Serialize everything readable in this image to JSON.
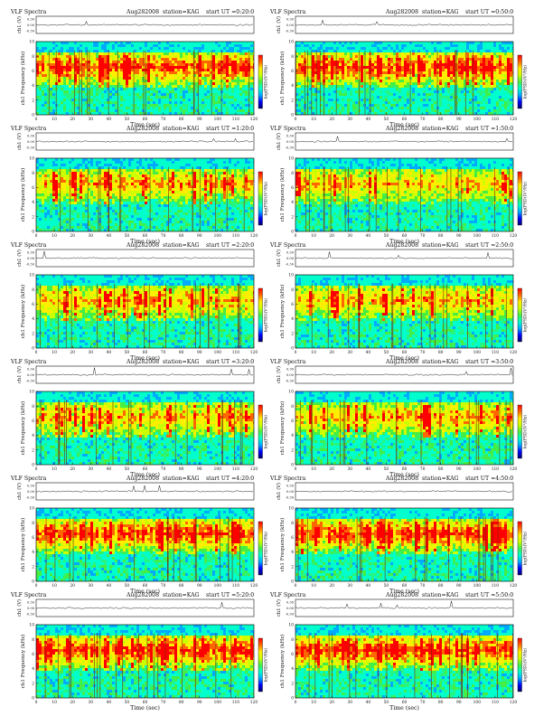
{
  "page": {
    "colors": {
      "background": "#ffffff",
      "axis": "#111111",
      "trace": "#222222"
    }
  },
  "chart_data": [
    {
      "type": "heatmap",
      "title": "VLF Spectra",
      "date": "Aug282008",
      "station": "station=KAG",
      "start_label": "start UT =0:20:0",
      "trace_ylabel": "ch1 (V)",
      "trace_ticks": [
        "0.30",
        "0.00",
        "-0.30"
      ],
      "spectrogram_ylabel": "ch1 Frequency (kHz)",
      "ylim": [
        0,
        10
      ],
      "y_ticks": [
        "0",
        "2",
        "4",
        "6",
        "8",
        "10"
      ],
      "xlabel": "Time (sec)",
      "xlim": [
        0,
        120
      ],
      "x_ticks": [
        "0",
        "10",
        "20",
        "30",
        "40",
        "50",
        "60",
        "70",
        "80",
        "90",
        "100",
        "110",
        "120"
      ],
      "colorbar_label": "log(PSD)(V²/Hz)",
      "colormap": [
        "#00006a",
        "#0000ff",
        "#00aaff",
        "#00ffcc",
        "#44ee44",
        "#ccff00",
        "#ffee00",
        "#ff6600",
        "#ff0000"
      ],
      "activity": "intense"
    },
    {
      "type": "heatmap",
      "title": "VLF Spectra",
      "date": "Aug282008",
      "station": "station=KAG",
      "start_label": "start UT =0:50:0",
      "trace_ylabel": "ch1 (V)",
      "trace_ticks": [
        "0.30",
        "0.00",
        "-0.30"
      ],
      "spectrogram_ylabel": "ch1 Frequency (kHz)",
      "ylim": [
        0,
        10
      ],
      "y_ticks": [
        "0",
        "2",
        "4",
        "6",
        "8",
        "10"
      ],
      "xlabel": "Time (sec)",
      "xlim": [
        0,
        120
      ],
      "x_ticks": [
        "0",
        "10",
        "20",
        "30",
        "40",
        "50",
        "60",
        "70",
        "80",
        "90",
        "100",
        "110",
        "120"
      ],
      "colorbar_label": "log(PSD)(V²/Hz)",
      "colormap": [
        "#00006a",
        "#0000ff",
        "#00aaff",
        "#00ffcc",
        "#44ee44",
        "#ccff00",
        "#ffee00",
        "#ff6600",
        "#ff0000"
      ],
      "activity": "intense"
    },
    {
      "type": "heatmap",
      "title": "VLF Spectra",
      "date": "Aug282008",
      "station": "station=KAG",
      "start_label": "start UT =1:20:0",
      "trace_ylabel": "ch1 (V)",
      "trace_ticks": [
        "0.30",
        "0.00",
        "-0.30"
      ],
      "spectrogram_ylabel": "ch1 Frequency (kHz)",
      "ylim": [
        0,
        10
      ],
      "y_ticks": [
        "0",
        "2",
        "4",
        "6",
        "8",
        "10"
      ],
      "xlabel": "Time (sec)",
      "xlim": [
        0,
        120
      ],
      "x_ticks": [
        "0",
        "10",
        "20",
        "30",
        "40",
        "50",
        "60",
        "70",
        "80",
        "90",
        "100",
        "110",
        "120"
      ],
      "colorbar_label": "log(PSD)(V²/Hz)",
      "colormap": [
        "#00006a",
        "#0000ff",
        "#00aaff",
        "#00ffcc",
        "#44ee44",
        "#ccff00",
        "#ffee00",
        "#ff6600",
        "#ff0000"
      ],
      "activity": "moderate"
    },
    {
      "type": "heatmap",
      "title": "VLF Spectra",
      "date": "Aug282008",
      "station": "station=KAG",
      "start_label": "start UT =1:50:0",
      "trace_ylabel": "ch1 (V)",
      "trace_ticks": [
        "0.30",
        "0.00",
        "-0.30"
      ],
      "spectrogram_ylabel": "ch1 Frequency (kHz)",
      "ylim": [
        0,
        10
      ],
      "y_ticks": [
        "0",
        "2",
        "4",
        "6",
        "8",
        "10"
      ],
      "xlabel": "Time (sec)",
      "xlim": [
        0,
        120
      ],
      "x_ticks": [
        "0",
        "10",
        "20",
        "30",
        "40",
        "50",
        "60",
        "70",
        "80",
        "90",
        "100",
        "110",
        "120"
      ],
      "colorbar_label": "log(PSD)(V²/Hz)",
      "colormap": [
        "#00006a",
        "#0000ff",
        "#00aaff",
        "#00ffcc",
        "#44ee44",
        "#ccff00",
        "#ffee00",
        "#ff6600",
        "#ff0000"
      ],
      "activity": "moderate"
    },
    {
      "type": "heatmap",
      "title": "VLF Spectra",
      "date": "Aug282008",
      "station": "station=KAG",
      "start_label": "start UT =2:20:0",
      "trace_ylabel": "ch1 (V)",
      "trace_ticks": [
        "0.30",
        "0.00",
        "-0.30"
      ],
      "spectrogram_ylabel": "ch1 Frequency (kHz)",
      "ylim": [
        0,
        10
      ],
      "y_ticks": [
        "0",
        "2",
        "4",
        "6",
        "8",
        "10"
      ],
      "xlabel": "Time (sec)",
      "xlim": [
        0,
        120
      ],
      "x_ticks": [
        "0",
        "10",
        "20",
        "30",
        "40",
        "50",
        "60",
        "70",
        "80",
        "90",
        "100",
        "110",
        "120"
      ],
      "colorbar_label": "log(PSD)(V²/Hz)",
      "colormap": [
        "#00006a",
        "#0000ff",
        "#00aaff",
        "#00ffcc",
        "#44ee44",
        "#ccff00",
        "#ffee00",
        "#ff6600",
        "#ff0000"
      ],
      "activity": "moderate"
    },
    {
      "type": "heatmap",
      "title": "VLF Spectra",
      "date": "Aug282008",
      "station": "station=KAG",
      "start_label": "start UT =2:50:0",
      "trace_ylabel": "ch1 (V)",
      "trace_ticks": [
        "0.30",
        "0.00",
        "-0.30"
      ],
      "spectrogram_ylabel": "ch1 Frequency (kHz)",
      "ylim": [
        0,
        10
      ],
      "y_ticks": [
        "0",
        "2",
        "4",
        "6",
        "8",
        "10"
      ],
      "xlabel": "Time (sec)",
      "xlim": [
        0,
        120
      ],
      "x_ticks": [
        "0",
        "10",
        "20",
        "30",
        "40",
        "50",
        "60",
        "70",
        "80",
        "90",
        "100",
        "110",
        "120"
      ],
      "colorbar_label": "log(PSD)(V²/Hz)",
      "colormap": [
        "#00006a",
        "#0000ff",
        "#00aaff",
        "#00ffcc",
        "#44ee44",
        "#ccff00",
        "#ffee00",
        "#ff6600",
        "#ff0000"
      ],
      "activity": "moderate"
    },
    {
      "type": "heatmap",
      "title": "VLF Spectra",
      "date": "Aug282008",
      "station": "station=KAG",
      "start_label": "start UT =3:20:0",
      "trace_ylabel": "ch1 (V)",
      "trace_ticks": [
        "0.30",
        "0.00",
        "-0.30"
      ],
      "spectrogram_ylabel": "ch1 Frequency (kHz)",
      "ylim": [
        0,
        10
      ],
      "y_ticks": [
        "0",
        "2",
        "4",
        "6",
        "8",
        "10"
      ],
      "xlabel": "Time (sec)",
      "xlim": [
        0,
        120
      ],
      "x_ticks": [
        "0",
        "10",
        "20",
        "30",
        "40",
        "50",
        "60",
        "70",
        "80",
        "90",
        "100",
        "110",
        "120"
      ],
      "colorbar_label": "log(PSD)(V²/Hz)",
      "colormap": [
        "#00006a",
        "#0000ff",
        "#00aaff",
        "#00ffcc",
        "#44ee44",
        "#ccff00",
        "#ffee00",
        "#ff6600",
        "#ff0000"
      ],
      "activity": "moderate"
    },
    {
      "type": "heatmap",
      "title": "VLF Spectra",
      "date": "Aug282008",
      "station": "station=KAG",
      "start_label": "start UT =3:50:0",
      "trace_ylabel": "ch1 (V)",
      "trace_ticks": [
        "0.30",
        "0.00",
        "-0.30"
      ],
      "spectrogram_ylabel": "ch1 Frequency (kHz)",
      "ylim": [
        0,
        10
      ],
      "y_ticks": [
        "0",
        "2",
        "4",
        "6",
        "8",
        "10"
      ],
      "xlabel": "Time (sec)",
      "xlim": [
        0,
        120
      ],
      "x_ticks": [
        "0",
        "10",
        "20",
        "30",
        "40",
        "50",
        "60",
        "70",
        "80",
        "90",
        "100",
        "110",
        "120"
      ],
      "colorbar_label": "log(PSD)(V²/Hz)",
      "colormap": [
        "#00006a",
        "#0000ff",
        "#00aaff",
        "#00ffcc",
        "#44ee44",
        "#ccff00",
        "#ffee00",
        "#ff6600",
        "#ff0000"
      ],
      "activity": "moderate"
    },
    {
      "type": "heatmap",
      "title": "VLF Spectra",
      "date": "Aug282008",
      "station": "station=KAG",
      "start_label": "start UT =4:20:0",
      "trace_ylabel": "ch1 (V)",
      "trace_ticks": [
        "0.30",
        "0.00",
        "-0.30"
      ],
      "spectrogram_ylabel": "ch1 Frequency (kHz)",
      "ylim": [
        0,
        10
      ],
      "y_ticks": [
        "0",
        "2",
        "4",
        "6",
        "8",
        "10"
      ],
      "xlabel": "Time (sec)",
      "xlim": [
        0,
        120
      ],
      "x_ticks": [
        "0",
        "10",
        "20",
        "30",
        "40",
        "50",
        "60",
        "70",
        "80",
        "90",
        "100",
        "110",
        "120"
      ],
      "colorbar_label": "log(PSD)(V²/Hz)",
      "colormap": [
        "#00006a",
        "#0000ff",
        "#00aaff",
        "#00ffcc",
        "#44ee44",
        "#ccff00",
        "#ffee00",
        "#ff6600",
        "#ff0000"
      ],
      "activity": "intense"
    },
    {
      "type": "heatmap",
      "title": "VLF Spectra",
      "date": "Aug282008",
      "station": "station=KAG",
      "start_label": "start UT =4:50:0",
      "trace_ylabel": "ch1 (V)",
      "trace_ticks": [
        "0.30",
        "0.00",
        "-0.30"
      ],
      "spectrogram_ylabel": "ch1 Frequency (kHz)",
      "ylim": [
        0,
        10
      ],
      "y_ticks": [
        "0",
        "2",
        "4",
        "6",
        "8",
        "10"
      ],
      "xlabel": "Time (sec)",
      "xlim": [
        0,
        120
      ],
      "x_ticks": [
        "0",
        "10",
        "20",
        "30",
        "40",
        "50",
        "60",
        "70",
        "80",
        "90",
        "100",
        "110",
        "120"
      ],
      "colorbar_label": "log(PSD)(V²/Hz)",
      "colormap": [
        "#00006a",
        "#0000ff",
        "#00aaff",
        "#00ffcc",
        "#44ee44",
        "#ccff00",
        "#ffee00",
        "#ff6600",
        "#ff0000"
      ],
      "activity": "intense"
    },
    {
      "type": "heatmap",
      "title": "VLF Spectra",
      "date": "Aug282008",
      "station": "station=KAG",
      "start_label": "start UT =5:20:0",
      "trace_ylabel": "ch1 (V)",
      "trace_ticks": [
        "0.30",
        "0.00",
        "-0.30"
      ],
      "spectrogram_ylabel": "ch1 Frequency (kHz)",
      "ylim": [
        0,
        10
      ],
      "y_ticks": [
        "0",
        "2",
        "4",
        "6",
        "8",
        "10"
      ],
      "xlabel": "Time (sec)",
      "xlim": [
        0,
        120
      ],
      "x_ticks": [
        "0",
        "10",
        "20",
        "30",
        "40",
        "50",
        "60",
        "70",
        "80",
        "90",
        "100",
        "110",
        "120"
      ],
      "colorbar_label": "log(PSD)(V²/Hz)",
      "colormap": [
        "#00006a",
        "#0000ff",
        "#00aaff",
        "#00ffcc",
        "#44ee44",
        "#ccff00",
        "#ffee00",
        "#ff6600",
        "#ff0000"
      ],
      "activity": "intense"
    },
    {
      "type": "heatmap",
      "title": "VLF Spectra",
      "date": "Aug282008",
      "station": "station=KAG",
      "start_label": "start UT =5:50:0",
      "trace_ylabel": "ch1 (V)",
      "trace_ticks": [
        "0.30",
        "0.00",
        "-0.30"
      ],
      "spectrogram_ylabel": "ch1 Frequency (kHz)",
      "ylim": [
        0,
        10
      ],
      "y_ticks": [
        "0",
        "2",
        "4",
        "6",
        "8",
        "10"
      ],
      "xlabel": "Time (sec)",
      "xlim": [
        0,
        120
      ],
      "x_ticks": [
        "0",
        "10",
        "20",
        "30",
        "40",
        "50",
        "60",
        "70",
        "80",
        "90",
        "100",
        "110",
        "120"
      ],
      "colorbar_label": "log(PSD)(V²/Hz)",
      "colormap": [
        "#00006a",
        "#0000ff",
        "#00aaff",
        "#00ffcc",
        "#44ee44",
        "#ccff00",
        "#ffee00",
        "#ff6600",
        "#ff0000"
      ],
      "activity": "intense"
    }
  ]
}
